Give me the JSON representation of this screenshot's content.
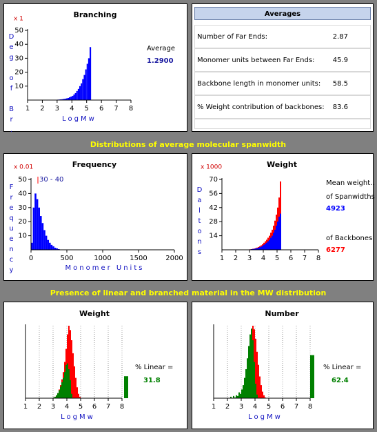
{
  "headings": [
    "Distributions of average molecular spanwidth",
    "Presence of linear and branched material in the MW distribution"
  ],
  "averages": {
    "title": "Averages",
    "rows": [
      [
        "Number of Far Ends:",
        "2.87"
      ],
      [
        "Monomer units between Far Ends:",
        "45.9"
      ],
      [
        "Backbone length in monomer units:",
        "58.5"
      ],
      [
        "% Weight contribution of backbones:",
        "83.6"
      ]
    ]
  },
  "chart_data": [
    {
      "type": "histogram",
      "title": "Branching",
      "multiplier": "x 1",
      "ylabel": "Deg of Br.",
      "xlabel": "LogMw",
      "xlim": [
        1,
        8
      ],
      "xticks": [
        1,
        2,
        3,
        4,
        5,
        6,
        7,
        8
      ],
      "ylim": [
        0,
        50
      ],
      "yticks": [
        10,
        20,
        30,
        40,
        50
      ],
      "stat_label": "Average",
      "stat_value": "1.2900",
      "series": [
        {
          "color": "#0000ff",
          "bins": [
            3.0,
            3.1,
            3.2,
            3.3,
            3.4,
            3.5,
            3.6,
            3.7,
            3.8,
            3.9,
            4.0,
            4.1,
            4.2,
            4.3,
            4.4,
            4.5,
            4.6,
            4.7,
            4.8,
            4.9,
            5.0,
            5.1,
            5.2,
            5.3
          ],
          "values": [
            0.3,
            0.4,
            0.5,
            0.6,
            0.8,
            1,
            1.2,
            1.5,
            2,
            2.5,
            3,
            4,
            5,
            6.5,
            8,
            10,
            12,
            15,
            18,
            22,
            26,
            30,
            38
          ]
        }
      ]
    },
    {
      "type": "histogram",
      "title": "Frequency",
      "multiplier": "x 0.01",
      "ylabel": "Frequency",
      "xlabel": "Monomer Units",
      "xlim": [
        0,
        2000
      ],
      "xticks": [
        0,
        500,
        1000,
        1500,
        2000
      ],
      "ylim": [
        0,
        50
      ],
      "yticks": [
        10,
        20,
        30,
        40,
        50
      ],
      "annotation": "30 - 40",
      "series": [
        {
          "color": "#0000ff",
          "bins": [
            0,
            25,
            50,
            75,
            100,
            125,
            150,
            175,
            200,
            225,
            250,
            275,
            300,
            325,
            350,
            375,
            400
          ],
          "values": [
            5,
            30,
            40,
            36,
            30,
            24,
            19,
            14,
            10,
            7,
            5,
            3.5,
            2.5,
            1.5,
            1,
            0.5
          ]
        }
      ]
    },
    {
      "type": "histogram",
      "title": "Weight",
      "multiplier": "x 1000",
      "ylabel": "Daltons",
      "xlim": [
        1,
        8
      ],
      "xticks": [
        1,
        2,
        3,
        4,
        5,
        6,
        7,
        8
      ],
      "ylim": [
        0,
        70
      ],
      "yticks": [
        14,
        28,
        42,
        56,
        70
      ],
      "side_title": "Mean weight..",
      "series": [
        {
          "name": "of Backbones",
          "mean": "6277",
          "color": "#ff0000",
          "bins": [
            3.0,
            3.1,
            3.2,
            3.3,
            3.4,
            3.5,
            3.6,
            3.7,
            3.8,
            3.9,
            4.0,
            4.1,
            4.2,
            4.3,
            4.4,
            4.5,
            4.6,
            4.7,
            4.8,
            4.9,
            5.0,
            5.1,
            5.2,
            5.3
          ],
          "values": [
            0.5,
            0.7,
            1,
            1.3,
            1.7,
            2.2,
            2.8,
            3.5,
            4.5,
            5.5,
            7,
            8.5,
            10,
            12,
            14,
            17,
            20,
            24,
            29,
            35,
            42,
            52,
            68
          ]
        },
        {
          "name": "of Spanwidths",
          "mean": "4923",
          "color": "#0000ff",
          "bins": [
            3.0,
            3.1,
            3.2,
            3.3,
            3.4,
            3.5,
            3.6,
            3.7,
            3.8,
            3.9,
            4.0,
            4.1,
            4.2,
            4.3,
            4.4,
            4.5,
            4.6,
            4.7,
            4.8,
            4.9,
            5.0,
            5.1,
            5.2,
            5.3
          ],
          "values": [
            0.4,
            0.6,
            0.8,
            1,
            1.3,
            1.7,
            2.1,
            2.6,
            3.2,
            4,
            5,
            6,
            7,
            8.5,
            10,
            12,
            14,
            17,
            20,
            24,
            28,
            33,
            36
          ]
        }
      ]
    },
    {
      "type": "histogram",
      "title": "Weight",
      "xlabel": "LogMw",
      "xlim": [
        1,
        8
      ],
      "xticks": [
        1,
        2,
        3,
        4,
        5,
        6,
        7,
        8
      ],
      "ylim": [
        0,
        100
      ],
      "grid": true,
      "side_label": "% Linear =",
      "linear_pct": 31.8,
      "series": [
        {
          "color": "#ff0000",
          "bins": [
            3.0,
            3.1,
            3.2,
            3.3,
            3.4,
            3.5,
            3.6,
            3.7,
            3.8,
            3.9,
            4.0,
            4.1,
            4.2,
            4.3,
            4.4,
            4.5,
            4.6,
            4.7,
            4.8,
            4.9,
            5.0
          ],
          "values": [
            1,
            2,
            4,
            7,
            12,
            18,
            26,
            36,
            50,
            68,
            88,
            100,
            94,
            80,
            62,
            44,
            28,
            15,
            6,
            2
          ]
        },
        {
          "color": "#008000",
          "bins": [
            3.0,
            3.1,
            3.2,
            3.3,
            3.4,
            3.5,
            3.6,
            3.7,
            3.8,
            3.9,
            4.0,
            4.1,
            4.2,
            4.3,
            4.4
          ],
          "values": [
            1,
            2,
            4,
            7,
            11,
            16,
            22,
            28,
            36,
            46,
            48,
            40,
            25,
            6
          ]
        }
      ]
    },
    {
      "type": "histogram",
      "title": "Number",
      "xlabel": "LogMw",
      "xlim": [
        1,
        8
      ],
      "xticks": [
        1,
        2,
        3,
        4,
        5,
        6,
        7,
        8
      ],
      "ylim": [
        0,
        100
      ],
      "grid": true,
      "side_label": "% Linear =",
      "linear_pct": 62.4,
      "series": [
        {
          "color": "#ff0000",
          "bins": [
            2.7,
            2.8,
            2.9,
            3.0,
            3.1,
            3.2,
            3.3,
            3.4,
            3.5,
            3.6,
            3.7,
            3.8,
            3.9,
            4.0,
            4.1,
            4.2,
            4.3,
            4.4,
            4.5,
            4.6,
            4.7,
            4.8
          ],
          "values": [
            1,
            2,
            3,
            5,
            8,
            14,
            22,
            34,
            50,
            70,
            90,
            100,
            95,
            82,
            64,
            46,
            30,
            18,
            9,
            4,
            1
          ]
        },
        {
          "color": "#008000",
          "bins": [
            2.0,
            2.1,
            2.2,
            2.3,
            2.4,
            2.5,
            2.6,
            2.7,
            2.8,
            2.9,
            3.0,
            3.1,
            3.2,
            3.3,
            3.4,
            3.5,
            3.6,
            3.7,
            3.8,
            3.9,
            4.0,
            4.1,
            4.2
          ],
          "values": [
            0,
            0,
            2,
            0,
            3,
            1,
            4,
            3,
            8,
            6,
            12,
            18,
            28,
            40,
            55,
            72,
            88,
            96,
            80,
            50,
            20,
            5
          ]
        }
      ]
    }
  ]
}
